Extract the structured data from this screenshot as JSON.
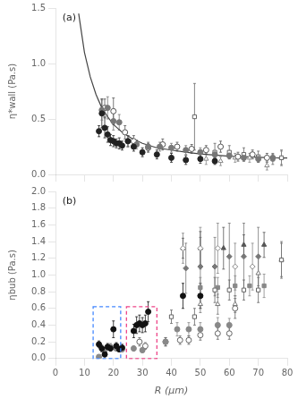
{
  "chart_data": [
    {
      "type": "scatter",
      "ylabel": "η*wall (Pa.s)",
      "annotations": [
        "(a)"
      ],
      "xlim": [
        0,
        80
      ],
      "xticks": [
        0,
        10,
        20,
        30,
        40,
        50,
        60,
        70,
        80
      ],
      "ylim": [
        0,
        1.5
      ],
      "yticks": [
        {
          "value": 0,
          "label": "0.0"
        },
        0.5,
        {
          "value": 1.0,
          "label": "1.0"
        },
        1.5
      ],
      "tick_labels": "y",
      "grid": false,
      "series": [
        {
          "type": "line",
          "color": "#444444",
          "x": [
            8,
            10,
            12,
            14,
            16,
            18,
            20,
            23,
            26,
            30,
            35,
            40,
            45,
            50,
            55,
            60,
            65,
            70,
            75,
            80
          ],
          "values": [
            1.45,
            1.1,
            0.88,
            0.72,
            0.6,
            0.52,
            0.45,
            0.38,
            0.33,
            0.28,
            0.24,
            0.22,
            0.2,
            0.185,
            0.175,
            0.165,
            0.16,
            0.155,
            0.15,
            0.148
          ]
        },
        {
          "type": "scatter",
          "color": "#222222",
          "marker": "circle",
          "x": [
            15,
            16,
            17,
            18,
            19,
            20,
            21,
            22,
            23,
            25,
            27,
            30,
            35,
            40,
            45,
            50,
            55
          ],
          "values": [
            0.39,
            0.55,
            0.42,
            0.36,
            0.31,
            0.3,
            0.28,
            0.28,
            0.26,
            0.3,
            0.25,
            0.2,
            0.18,
            0.15,
            0.13,
            0.14,
            0.12
          ],
          "yerr": [
            0.05,
            0.13,
            0.09,
            0.07,
            0.05,
            0.05,
            0.04,
            0.05,
            0.04,
            0.05,
            0.04,
            0.04,
            0.04,
            0.04,
            0.04,
            0.04,
            0.03
          ]
        },
        {
          "type": "scatter",
          "color": "#777777",
          "marker": "circle",
          "x": [
            16,
            18,
            20,
            22,
            25,
            28,
            32,
            36,
            40,
            45,
            50,
            55,
            60,
            65,
            70,
            75
          ],
          "values": [
            0.58,
            0.6,
            0.48,
            0.47,
            0.3,
            0.27,
            0.25,
            0.25,
            0.24,
            0.22,
            0.2,
            0.18,
            0.17,
            0.15,
            0.14,
            0.15
          ],
          "yerr": [
            0.09,
            0.1,
            0.08,
            0.07,
            0.05,
            0.04,
            0.04,
            0.04,
            0.04,
            0.04,
            0.04,
            0.03,
            0.03,
            0.03,
            0.03,
            0.03
          ]
        },
        {
          "type": "scatter",
          "color": "#555555",
          "marker": "open_circle",
          "x": [
            17,
            20,
            24,
            27,
            32,
            37,
            42,
            47,
            52,
            57,
            63,
            68,
            73
          ],
          "values": [
            0.6,
            0.57,
            0.38,
            0.3,
            0.24,
            0.27,
            0.25,
            0.23,
            0.22,
            0.25,
            0.16,
            0.18,
            0.15
          ],
          "yerr": [
            0.08,
            0.12,
            0.06,
            0.05,
            0.04,
            0.05,
            0.04,
            0.04,
            0.04,
            0.05,
            0.04,
            0.04,
            0.04
          ]
        },
        {
          "type": "scatter",
          "color": "#666666",
          "marker": "open_square",
          "x": [
            48,
            55,
            60,
            65,
            70,
            75,
            78
          ],
          "values": [
            0.52,
            0.2,
            0.2,
            0.18,
            0.16,
            0.14,
            0.15
          ],
          "yerr": [
            0.3,
            0.08,
            0.06,
            0.06,
            0.05,
            0.05,
            0.07
          ]
        },
        {
          "type": "scatter",
          "color": "#888888",
          "marker": "open_triangle",
          "x": [
            52,
            57,
            62,
            67,
            73,
            78
          ],
          "values": [
            0.14,
            0.12,
            0.15,
            0.15,
            0.08,
            0.15
          ],
          "yerr": [
            0.05,
            0.04,
            0.04,
            0.04,
            0.04,
            0.06
          ]
        }
      ]
    },
    {
      "type": "scatter",
      "ylabel": "ηbub (Pa.s)",
      "xlabel": "R (μm)",
      "annotations": [
        "(b)"
      ],
      "xlim": [
        0,
        80
      ],
      "xticks": [
        0,
        10,
        20,
        30,
        40,
        50,
        60,
        70,
        80
      ],
      "ylim": [
        0,
        2
      ],
      "yticks": [
        {
          "value": 0,
          "label": "0.0"
        },
        0.2,
        0.4,
        0.6,
        0.8,
        {
          "value": 1.0,
          "label": "1.0"
        },
        1.2,
        1.4,
        1.6,
        1.8,
        {
          "value": 2.0,
          "label": "2.0"
        }
      ],
      "grid": false,
      "boxes": [
        {
          "x0": 13.0,
          "y0": 0.0,
          "width": 9.5,
          "height": 0.62,
          "color": "#4488ff",
          "line_style": "dashed"
        },
        {
          "x0": 24.5,
          "y0": 0.0,
          "width": 10.5,
          "height": 0.62,
          "color": "#ee4488",
          "line_style": "dashed"
        }
      ],
      "series": [
        {
          "type": "scatter",
          "color": "#111111",
          "marker": "circle",
          "x": [
            15,
            16,
            17,
            18,
            19,
            20,
            21,
            22,
            23,
            27,
            28,
            29,
            30,
            31,
            32,
            44,
            50
          ],
          "values": [
            0.17,
            0.12,
            0.05,
            0.14,
            0.12,
            0.35,
            0.15,
            0.11,
            0.13,
            0.33,
            0.4,
            0.42,
            0.4,
            0.42,
            0.56,
            0.75,
            0.75
          ],
          "yerr": [
            0.04,
            0.04,
            0.03,
            0.04,
            0.03,
            0.1,
            0.04,
            0.03,
            0.04,
            0.08,
            0.1,
            0.1,
            0.09,
            0.1,
            0.12,
            0.15,
            0.15
          ]
        },
        {
          "type": "scatter",
          "color": "#888888",
          "marker": "circle",
          "x": [
            15,
            17,
            19,
            21,
            23,
            27,
            30,
            38,
            42,
            46,
            50,
            56,
            60
          ],
          "values": [
            0.02,
            0.1,
            0.14,
            0.12,
            0.11,
            0.12,
            0.1,
            0.2,
            0.35,
            0.35,
            0.35,
            0.4,
            0.4
          ],
          "yerr": [
            0.02,
            0.03,
            0.04,
            0.03,
            0.03,
            0.03,
            0.03,
            0.05,
            0.08,
            0.08,
            0.08,
            0.09,
            0.08
          ]
        },
        {
          "type": "scatter",
          "color": "#666666",
          "marker": "open_circle",
          "x": [
            29,
            31,
            38,
            43,
            46,
            50,
            56,
            60,
            62
          ],
          "values": [
            0.2,
            0.15,
            0.2,
            0.22,
            0.22,
            0.28,
            0.3,
            0.3,
            0.6
          ],
          "yerr": [
            0.05,
            0.04,
            0.05,
            0.05,
            0.05,
            0.06,
            0.07,
            0.07,
            0.12
          ]
        },
        {
          "type": "scatter",
          "color": "#777777",
          "marker": "diamond",
          "x": [
            45,
            50,
            55,
            60,
            65,
            70
          ],
          "values": [
            1.08,
            1.1,
            1.1,
            1.22,
            1.22,
            1.22
          ],
          "yerr": [
            0.3,
            0.35,
            0.35,
            0.4,
            0.4,
            0.35
          ]
        },
        {
          "type": "scatter",
          "color": "#888888",
          "marker": "open_diamond",
          "x": [
            44,
            50,
            56,
            62,
            68
          ],
          "values": [
            1.32,
            1.32,
            1.32,
            1.1,
            1.1
          ],
          "yerr": [
            0.18,
            0.25,
            0.3,
            0.28,
            0.28
          ]
        },
        {
          "type": "scatter",
          "color": "#666666",
          "marker": "open_square",
          "x": [
            40,
            48,
            55,
            60,
            65,
            70,
            78
          ],
          "values": [
            0.5,
            0.5,
            0.82,
            0.82,
            0.82,
            0.82,
            1.18
          ],
          "yerr": [
            0.08,
            0.1,
            0.15,
            0.12,
            0.12,
            0.15,
            0.2
          ]
        },
        {
          "type": "scatter",
          "color": "#888888",
          "marker": "square",
          "x": [
            50,
            56,
            62,
            67,
            72
          ],
          "values": [
            0.85,
            0.85,
            0.87,
            0.87,
            0.87
          ],
          "yerr": [
            0.12,
            0.12,
            0.12,
            0.12,
            0.14
          ]
        },
        {
          "type": "scatter",
          "color": "#777777",
          "marker": "open_triangle",
          "x": [
            50,
            56,
            62,
            70,
            78
          ],
          "values": [
            0.65,
            0.65,
            0.65,
            1.02,
            1.18
          ],
          "yerr": [
            0.1,
            0.12,
            0.1,
            0.2,
            0.22
          ]
        },
        {
          "type": "scatter",
          "color": "#555555",
          "marker": "triangle",
          "x": [
            44,
            50,
            58,
            65,
            72
          ],
          "values": [
            1.32,
            1.32,
            1.32,
            1.36,
            1.36
          ],
          "yerr": [
            0.12,
            0.2,
            0.25,
            0.12,
            0.15
          ]
        }
      ]
    }
  ]
}
